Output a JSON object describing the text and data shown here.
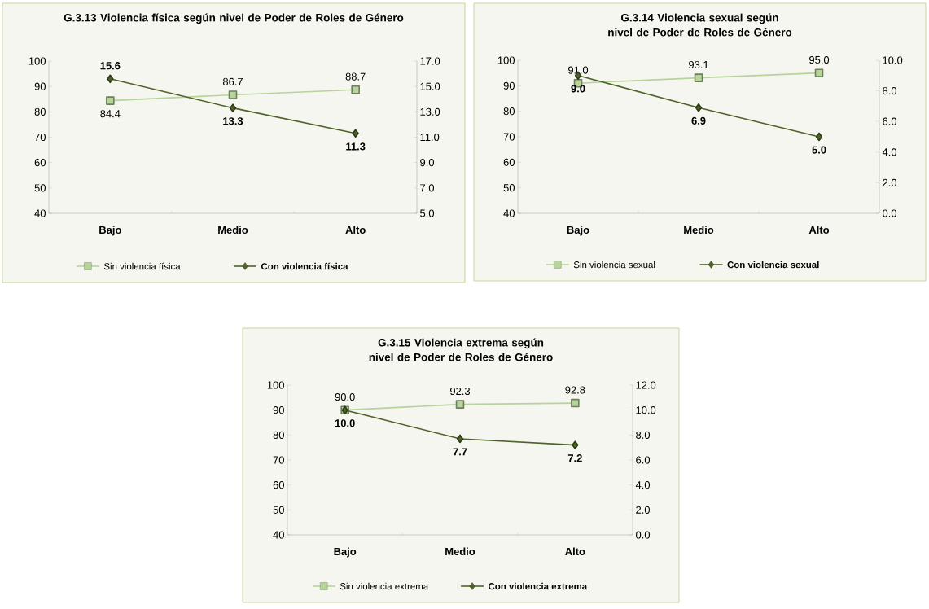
{
  "chart_data": [
    {
      "type": "line",
      "title": "G.3.13 Violencia física según nivel de Poder de Roles de Género",
      "categories": [
        "Bajo",
        "Medio",
        "Alto"
      ],
      "ylim": [
        40,
        100
      ],
      "yticks": [
        40,
        50,
        60,
        70,
        80,
        90,
        100
      ],
      "y2lim": [
        5,
        17
      ],
      "y2ticks": [
        {
          "value": 5,
          "label": "5.0"
        },
        {
          "value": 7,
          "label": "7.0"
        },
        {
          "value": 9,
          "label": "9.0"
        },
        {
          "value": 11,
          "label": "11.0"
        },
        {
          "value": 13,
          "label": "13.0"
        },
        {
          "value": 15,
          "label": "15.0"
        },
        {
          "value": 17,
          "label": "17.0"
        }
      ],
      "legend": "bottom",
      "series": [
        {
          "name": "Sin violencia física",
          "color": "#b7d49b",
          "marker": "square",
          "values": [
            84.4,
            86.7,
            88.7
          ],
          "value_labels": [
            "84.4",
            "86.7",
            "88.7"
          ]
        },
        {
          "name": "Con violencia física",
          "color": "#4f6228",
          "marker": "diamond",
          "axis": "y2",
          "values": [
            15.6,
            13.3,
            11.3
          ],
          "value_labels": [
            "15.6",
            "13.3",
            "11.3"
          ]
        }
      ]
    },
    {
      "type": "line",
      "title": "G.3.14 Violencia sexual según nivel de Poder de Roles de Género",
      "categories": [
        "Bajo",
        "Medio",
        "Alto"
      ],
      "ylim": [
        40,
        100
      ],
      "yticks": [
        40,
        50,
        60,
        70,
        80,
        90,
        100
      ],
      "y2lim": [
        0,
        10
      ],
      "y2ticks": [
        {
          "value": 0,
          "label": "0.0"
        },
        {
          "value": 2,
          "label": "2.0"
        },
        {
          "value": 4,
          "label": "4.0"
        },
        {
          "value": 6,
          "label": "6.0"
        },
        {
          "value": 8,
          "label": "8.0"
        },
        {
          "value": 10,
          "label": "10.0"
        }
      ],
      "legend": "bottom",
      "series": [
        {
          "name": "Sin violencia sexual",
          "color": "#b7d49b",
          "marker": "square",
          "values": [
            91,
            93.1,
            95
          ],
          "value_labels": [
            "91.0",
            "93.1",
            "95.0"
          ]
        },
        {
          "name": "Con violencia sexual",
          "color": "#4f6228",
          "marker": "diamond",
          "axis": "y2",
          "values": [
            9,
            6.9,
            5
          ],
          "value_labels": [
            "9.0",
            "6.9",
            "5.0"
          ]
        }
      ]
    },
    {
      "type": "line",
      "title": "G.3.15 Violencia extrema según nivel de Poder de Roles de Género",
      "categories": [
        "Bajo",
        "Medio",
        "Alto"
      ],
      "ylim": [
        40,
        100
      ],
      "yticks": [
        40,
        50,
        60,
        70,
        80,
        90,
        100
      ],
      "y2lim": [
        0,
        12
      ],
      "y2ticks": [
        {
          "value": 0,
          "label": "0.0"
        },
        {
          "value": 2,
          "label": "2.0"
        },
        {
          "value": 4,
          "label": "4.0"
        },
        {
          "value": 6,
          "label": "6.0"
        },
        {
          "value": 8,
          "label": "8.0"
        },
        {
          "value": 10,
          "label": "10.0"
        },
        {
          "value": 12,
          "label": "12.0"
        }
      ],
      "legend": "bottom",
      "series": [
        {
          "name": "Sin violencia extrema",
          "color": "#b7d49b",
          "marker": "square",
          "values": [
            90,
            92.3,
            92.8
          ],
          "value_labels": [
            "90.0",
            "92.3",
            "92.8"
          ]
        },
        {
          "name": "Con violencia extrema",
          "color": "#4f6228",
          "marker": "diamond",
          "axis": "y2",
          "values": [
            10,
            7.7,
            7.2
          ],
          "value_labels": [
            "10.0",
            "7.7",
            "7.2"
          ]
        }
      ]
    }
  ]
}
